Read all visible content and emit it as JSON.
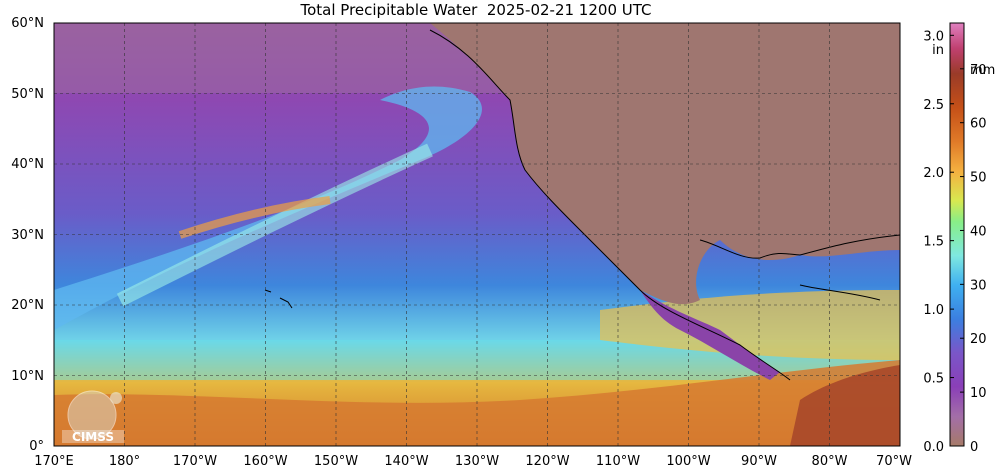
{
  "title": "Total Precipitable Water  2025-02-21 1200 UTC",
  "map": {
    "lat_labels": [
      "60°N",
      "50°N",
      "40°N",
      "30°N",
      "20°N",
      "10°N",
      "0°"
    ],
    "lon_labels": [
      "170°E",
      "180°",
      "170°W",
      "160°W",
      "150°W",
      "140°W",
      "130°W",
      "120°W",
      "110°W",
      "100°W",
      "90°W",
      "80°W",
      "70°W"
    ],
    "lat_range": [
      0,
      60
    ],
    "lon_range": [
      "170°E",
      "70°W"
    ],
    "grid": "dashed, every 10°"
  },
  "colorbar": {
    "left_unit": "in",
    "right_unit": "mm",
    "in_ticks": [
      "0.0",
      "0.5",
      "1.0",
      "1.5",
      "2.0",
      "2.5",
      "3.0"
    ],
    "mm_ticks": [
      "0",
      "10",
      "20",
      "30",
      "40",
      "50",
      "60",
      "70"
    ],
    "colors": [
      "#a67a68",
      "#a36ea8",
      "#8a3fb8",
      "#7a56c8",
      "#3b7fe0",
      "#3fb0f0",
      "#7fe8e0",
      "#88ee88",
      "#d8e850",
      "#f4b040",
      "#e07a28",
      "#c55018",
      "#9a3b28",
      "#c04070",
      "#e080c0"
    ]
  },
  "logo": {
    "text": "CIMSS"
  }
}
